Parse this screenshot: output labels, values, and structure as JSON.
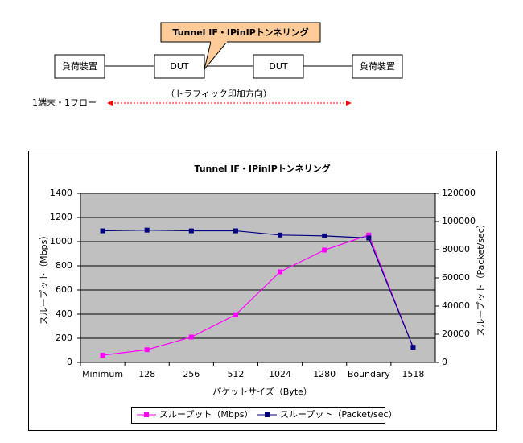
{
  "diagram": {
    "callout": "Tunnel IF・IPinIPトンネリング",
    "nodes": [
      {
        "label": "負荷装置"
      },
      {
        "label": "DUT"
      },
      {
        "label": "DUT"
      },
      {
        "label": "負荷装置"
      }
    ],
    "direction": "（トラフィック印加方向）",
    "flow": "1端末・1フロー"
  },
  "chart_data": {
    "type": "line",
    "title": "Tunnel IF・IPinIPトンネリング",
    "x_label": "パケットサイズ（Byte）",
    "y_label": "スループット（Mbps）",
    "y2_label": "スループット（Packet/sec）",
    "categories": [
      "Minimum",
      "128",
      "256",
      "512",
      "1024",
      "1280",
      "Boundary",
      "1518"
    ],
    "series": [
      {
        "name": "スループット（Mbps）",
        "color": "#ff00ff",
        "values": [
          60,
          105,
          210,
          395,
          750,
          930,
          1055,
          125
        ]
      },
      {
        "name": "スループット（Packet/sec）",
        "color": "#000080",
        "axis": "y2",
        "values": [
          93400,
          93900,
          93400,
          93400,
          90400,
          89800,
          88300,
          10700
        ]
      }
    ],
    "ylim": [
      0,
      1400
    ],
    "yticks": [
      0,
      200,
      400,
      600,
      800,
      1000,
      1200,
      1400
    ],
    "y2lim": [
      0,
      120000
    ],
    "y2ticks": [
      0,
      20000,
      40000,
      60000,
      80000,
      100000,
      120000
    ],
    "grid": true,
    "legend": "bottom",
    "plot_background": "#c0c0c0"
  }
}
